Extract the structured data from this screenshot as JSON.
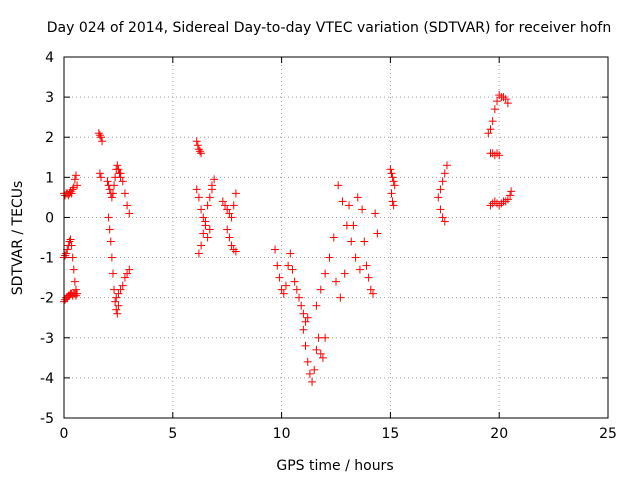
{
  "chart_data": {
    "type": "scatter",
    "title": "Day 024 of 2014, Sidereal Day-to-day VTEC variation (SDTVAR) for receiver hofn",
    "xlabel": "GPS time / hours",
    "ylabel": "SDTVAR / TECUs",
    "xlim": [
      0,
      25
    ],
    "ylim": [
      -5,
      4
    ],
    "x_ticks": [
      0,
      5,
      10,
      15,
      20,
      25
    ],
    "y_ticks": [
      -5,
      -4,
      -3,
      -2,
      -1,
      0,
      1,
      2,
      3,
      4
    ],
    "x_tick_labels": [
      "0",
      "5",
      "10",
      "15",
      "20",
      "25"
    ],
    "y_tick_labels": [
      "-5",
      "-4",
      "-3",
      "-2",
      "-1",
      "0",
      "1",
      "2",
      "3",
      "4"
    ],
    "grid": true,
    "marker": "+",
    "marker_color": "#ff0000",
    "series": [
      {
        "name": "SDTVAR",
        "segments": [
          {
            "x": [
              0.0,
              0.05,
              0.1,
              0.15,
              0.2,
              0.25,
              0.3,
              0.35,
              0.4,
              0.45,
              0.5,
              0.55,
              0.6
            ],
            "y": [
              0.6,
              0.55,
              0.6,
              0.6,
              0.55,
              0.6,
              0.65,
              0.6,
              0.7,
              0.75,
              0.95,
              1.05,
              0.8
            ]
          },
          {
            "x": [
              0.0,
              0.05,
              0.1,
              0.15,
              0.2,
              0.25,
              0.3,
              0.35,
              0.4,
              0.45,
              0.5,
              0.55
            ],
            "y": [
              -1.0,
              -0.95,
              -0.9,
              -0.8,
              -0.7,
              -0.6,
              -0.55,
              -0.7,
              -1.0,
              -1.3,
              -1.6,
              -1.8
            ]
          },
          {
            "x": [
              0.0,
              0.05,
              0.1,
              0.15,
              0.2,
              0.25,
              0.3,
              0.35,
              0.4,
              0.45,
              0.5,
              0.55,
              0.6
            ],
            "y": [
              -2.1,
              -2.05,
              -2.0,
              -2.0,
              -1.95,
              -1.95,
              -1.9,
              -1.9,
              -1.95,
              -1.9,
              -1.9,
              -1.95,
              -1.9
            ]
          },
          {
            "x": [
              1.6,
              1.65,
              1.7,
              1.75,
              1.65,
              1.7
            ],
            "y": [
              2.1,
              2.05,
              2.0,
              1.9,
              1.1,
              1.0
            ]
          },
          {
            "x": [
              2.0,
              2.05,
              2.1,
              2.15,
              2.2,
              2.25,
              2.3,
              2.35,
              2.4,
              2.45,
              2.5,
              2.55,
              2.6
            ],
            "y": [
              0.9,
              0.8,
              0.7,
              0.6,
              0.5,
              0.6,
              0.8,
              1.0,
              1.2,
              1.3,
              1.2,
              1.1,
              1.0
            ]
          },
          {
            "x": [
              2.05,
              2.1,
              2.15,
              2.2,
              2.25,
              2.3,
              2.35,
              2.4,
              2.45,
              2.5
            ],
            "y": [
              0.0,
              -0.3,
              -0.6,
              -1.0,
              -1.4,
              -1.8,
              -2.1,
              -2.3,
              -2.4,
              -2.2
            ]
          },
          {
            "x": [
              2.4,
              2.5,
              2.6,
              2.7,
              2.8,
              2.9,
              3.0,
              2.6,
              2.7,
              2.8,
              2.9,
              3.0
            ],
            "y": [
              -2.0,
              -1.9,
              -1.8,
              -1.7,
              -1.5,
              -1.4,
              -1.3,
              1.1,
              0.9,
              0.6,
              0.3,
              0.1
            ]
          },
          {
            "x": [
              6.1,
              6.15,
              6.2,
              6.25,
              6.3
            ],
            "y": [
              1.9,
              1.8,
              1.7,
              1.65,
              1.6
            ]
          },
          {
            "x": [
              6.1,
              6.2,
              6.3,
              6.4,
              6.5,
              6.6,
              6.7,
              6.8,
              6.9,
              6.2,
              6.3,
              6.4,
              6.5,
              6.6,
              6.7,
              6.8
            ],
            "y": [
              0.7,
              0.5,
              0.2,
              0.0,
              -0.2,
              -0.5,
              -0.3,
              0.8,
              0.95,
              -0.9,
              -0.7,
              -0.4,
              -0.1,
              0.3,
              0.5,
              0.7
            ]
          },
          {
            "x": [
              7.3,
              7.4,
              7.5,
              7.6,
              7.7,
              7.8,
              7.9,
              7.5,
              7.6,
              7.7,
              7.8,
              7.9
            ],
            "y": [
              0.4,
              0.3,
              0.2,
              0.1,
              0.0,
              0.3,
              0.6,
              -0.3,
              -0.5,
              -0.7,
              -0.8,
              -0.85
            ]
          },
          {
            "x": [
              9.7,
              9.8,
              9.9,
              10.0,
              10.1,
              10.2,
              10.3,
              10.4,
              10.5,
              10.6,
              10.7,
              10.8,
              10.9,
              11.0,
              11.1,
              11.2
            ],
            "y": [
              -0.8,
              -1.2,
              -1.5,
              -1.8,
              -1.9,
              -1.7,
              -1.2,
              -0.9,
              -1.3,
              -1.6,
              -1.8,
              -2.0,
              -2.2,
              -2.4,
              -2.6,
              -2.5
            ]
          },
          {
            "x": [
              11.0,
              11.1,
              11.2,
              11.3,
              11.4,
              11.5,
              11.6,
              11.7,
              11.8,
              11.9,
              12.0
            ],
            "y": [
              -2.8,
              -3.2,
              -3.6,
              -3.9,
              -4.1,
              -3.8,
              -3.3,
              -3.0,
              -3.4,
              -3.5,
              -3.0
            ]
          },
          {
            "x": [
              11.6,
              11.8,
              12.0,
              12.2,
              12.4,
              12.6,
              12.8,
              13.0,
              13.2,
              13.4,
              13.6,
              13.8,
              14.0,
              14.2,
              14.4
            ],
            "y": [
              -2.2,
              -1.8,
              -1.4,
              -1.0,
              -0.5,
              0.8,
              0.4,
              -0.2,
              -0.6,
              -1.0,
              -1.3,
              -0.6,
              -1.5,
              -1.9,
              -0.4
            ]
          },
          {
            "x": [
              12.5,
              12.7,
              12.9,
              13.1,
              13.3,
              13.5,
              13.7,
              13.9,
              14.1,
              14.3
            ],
            "y": [
              -1.6,
              -2.0,
              -1.4,
              0.3,
              -0.2,
              0.5,
              0.2,
              -1.2,
              -1.8,
              0.1
            ]
          },
          {
            "x": [
              15.0,
              15.05,
              15.1,
              15.15,
              15.2,
              15.05,
              15.1,
              15.15
            ],
            "y": [
              1.2,
              1.1,
              1.0,
              0.9,
              0.8,
              0.6,
              0.4,
              0.3
            ]
          },
          {
            "x": [
              17.2,
              17.3,
              17.4,
              17.5,
              17.6,
              17.3,
              17.4,
              17.5
            ],
            "y": [
              0.5,
              0.7,
              0.9,
              1.1,
              1.3,
              0.2,
              0.0,
              -0.1
            ]
          },
          {
            "x": [
              19.5,
              19.6,
              19.7,
              19.8,
              19.9,
              20.0,
              20.1,
              20.2,
              20.3,
              20.4
            ],
            "y": [
              2.1,
              2.2,
              2.4,
              2.7,
              2.9,
              3.05,
              3.0,
              3.0,
              2.95,
              2.85
            ]
          },
          {
            "x": [
              19.6,
              19.7,
              19.8,
              19.9,
              20.0
            ],
            "y": [
              1.6,
              1.6,
              1.55,
              1.6,
              1.55
            ]
          },
          {
            "x": [
              19.6,
              19.7,
              19.8,
              19.9,
              20.0,
              20.1,
              20.2,
              20.3,
              20.4,
              20.5,
              20.55
            ],
            "y": [
              0.3,
              0.35,
              0.4,
              0.35,
              0.3,
              0.35,
              0.4,
              0.4,
              0.45,
              0.55,
              0.65
            ]
          }
        ]
      }
    ]
  }
}
